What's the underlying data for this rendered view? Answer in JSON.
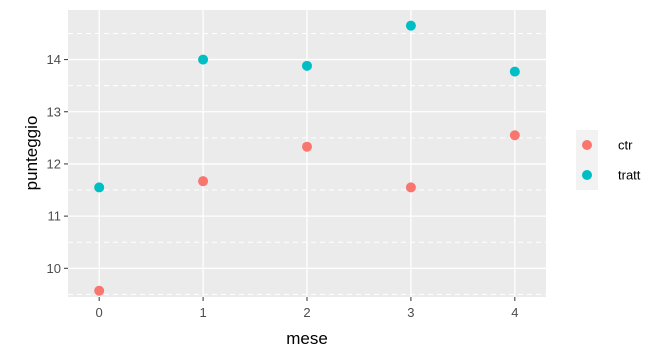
{
  "chart_data": {
    "type": "scatter",
    "xlabel": "mese",
    "ylabel": "punteggio",
    "x_ticks": [
      0,
      1,
      2,
      3,
      4
    ],
    "y_ticks": [
      10,
      11,
      12,
      13,
      14
    ],
    "xlim": [
      -0.3,
      4.3
    ],
    "ylim": [
      9.45,
      14.95
    ],
    "grid": true,
    "legend_position": "right",
    "series": [
      {
        "name": "ctr",
        "color": "#F8766D",
        "x": [
          0,
          1,
          2,
          3,
          4
        ],
        "y": [
          9.57,
          11.67,
          12.33,
          11.55,
          12.55
        ]
      },
      {
        "name": "tratt",
        "color": "#00BFC4",
        "x": [
          0,
          1,
          2,
          3,
          4
        ],
        "y": [
          11.55,
          14.0,
          13.88,
          14.65,
          13.77
        ]
      }
    ]
  }
}
